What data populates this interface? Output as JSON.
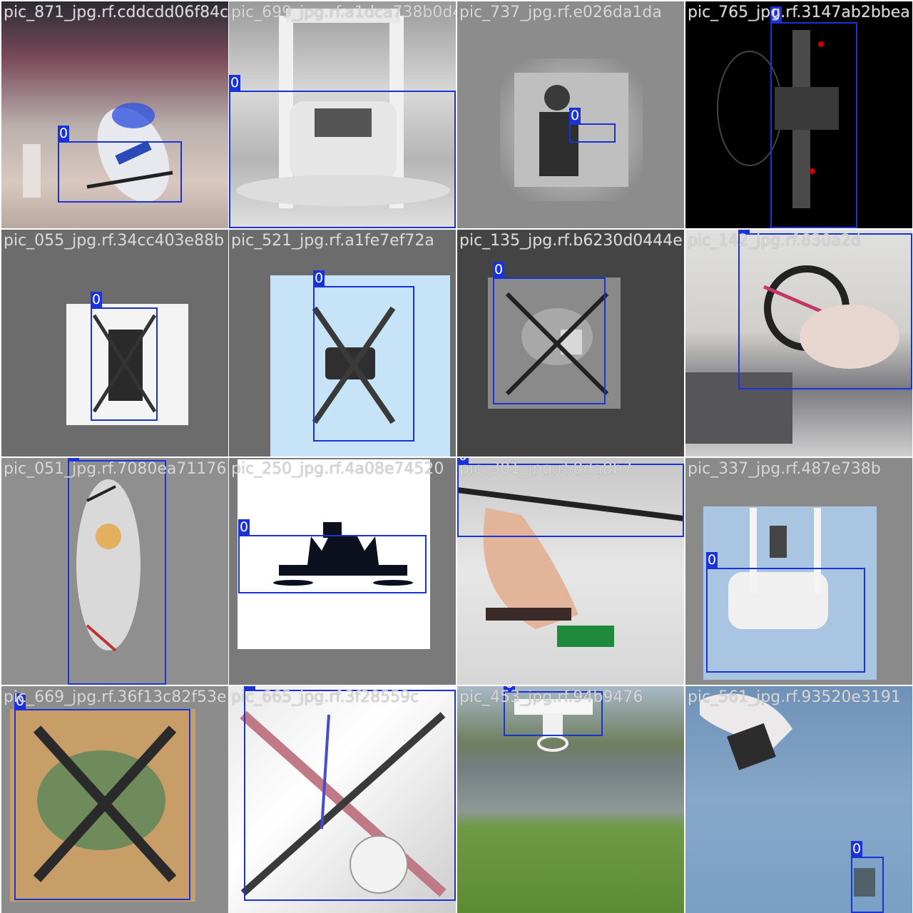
{
  "mosaic": {
    "class_id": "0",
    "colors": {
      "box": "#1a33d6",
      "label_text": "#d8d8d8",
      "tile_pad": "#808080"
    },
    "tiles": [
      {
        "label": "pic_871_jpg.rf.cddcdd06f84c"
      },
      {
        "label": "pic_699_jpg.rf.a1dca738b0d4"
      },
      {
        "label": "pic_737_jpg.rf.e026da1da"
      },
      {
        "label": "pic_765_jpg.rf.3147ab2bbea"
      },
      {
        "label": "pic_055_jpg.rf.34cc403e88b"
      },
      {
        "label": "pic_521_jpg.rf.a1fe7ef72a"
      },
      {
        "label": "pic_135_jpg.rf.b6230d0444e"
      },
      {
        "label": "pic_142_jpg.rf.830a2d"
      },
      {
        "label": "pic_051_jpg.rf.7080ea71176"
      },
      {
        "label": "pic_250_jpg.rf.4a08e74520"
      },
      {
        "label": "pic_301_jpg.rf.8da8b7"
      },
      {
        "label": "pic_337_jpg.rf.487e738b"
      },
      {
        "label": "pic_669_jpg.rf.36f13c82f53e"
      },
      {
        "label": "pic_665_jpg.rf.3f28559c"
      },
      {
        "label": "pic_453_jpg.rf.94b9476"
      },
      {
        "label": "pic_561_jpg.rf.93520e3191"
      }
    ]
  }
}
